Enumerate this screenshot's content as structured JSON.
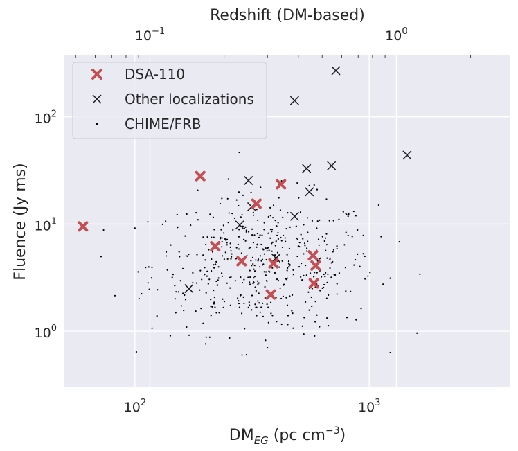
{
  "chart_data": {
    "type": "scatter",
    "x_scale": "log",
    "y_scale": "log",
    "xlim": [
      50,
      4000
    ],
    "ylim": [
      0.3,
      380
    ],
    "top_xlim": [
      0.045,
      2.9
    ],
    "grid": true,
    "xlabel": {
      "base": "DM",
      "sub": "EG",
      "unit_pre": " (pc cm",
      "unit_sup": "−3",
      "unit_post": ")"
    },
    "ylabel": "Fluence (Jy ms)",
    "top_xlabel": "Redshift (DM-based)",
    "x_ticks": [
      {
        "value": 100,
        "base": "10",
        "exp": "2"
      },
      {
        "value": 1000,
        "base": "10",
        "exp": "3"
      }
    ],
    "y_ticks": [
      {
        "value": 1,
        "base": "10",
        "exp": "0"
      },
      {
        "value": 10,
        "base": "10",
        "exp": "1"
      },
      {
        "value": 100,
        "base": "10",
        "exp": "2"
      }
    ],
    "top_ticks": [
      {
        "value": 0.1,
        "base": "10",
        "exp": "−1"
      },
      {
        "value": 1,
        "base": "10",
        "exp": "0"
      }
    ],
    "legend_position": "upper-left",
    "series": [
      {
        "name": "DSA-110",
        "marker": "bold-x",
        "color": "#c44e52",
        "points": [
          [
            60,
            9.5
          ],
          [
            190,
            28
          ],
          [
            220,
            6.2
          ],
          [
            285,
            4.5
          ],
          [
            330,
            15.5
          ],
          [
            380,
            2.2
          ],
          [
            390,
            4.3
          ],
          [
            420,
            23.5
          ],
          [
            575,
            5.1
          ],
          [
            580,
            2.8
          ],
          [
            590,
            4.1
          ]
        ]
      },
      {
        "name": "Other localizations",
        "marker": "x",
        "color": "#1a1a1a",
        "points": [
          [
            170,
            2.5
          ],
          [
            280,
            9.8
          ],
          [
            305,
            25.5
          ],
          [
            315,
            14.5
          ],
          [
            330,
            15.2
          ],
          [
            400,
            4.8
          ],
          [
            480,
            142
          ],
          [
            480,
            11.8
          ],
          [
            540,
            33
          ],
          [
            555,
            20
          ],
          [
            690,
            35
          ],
          [
            720,
            270
          ],
          [
            1450,
            44
          ]
        ]
      },
      {
        "name": "CHIME/FRB",
        "marker": "dot",
        "color": "#000000",
        "generated_count": 520
      }
    ]
  }
}
